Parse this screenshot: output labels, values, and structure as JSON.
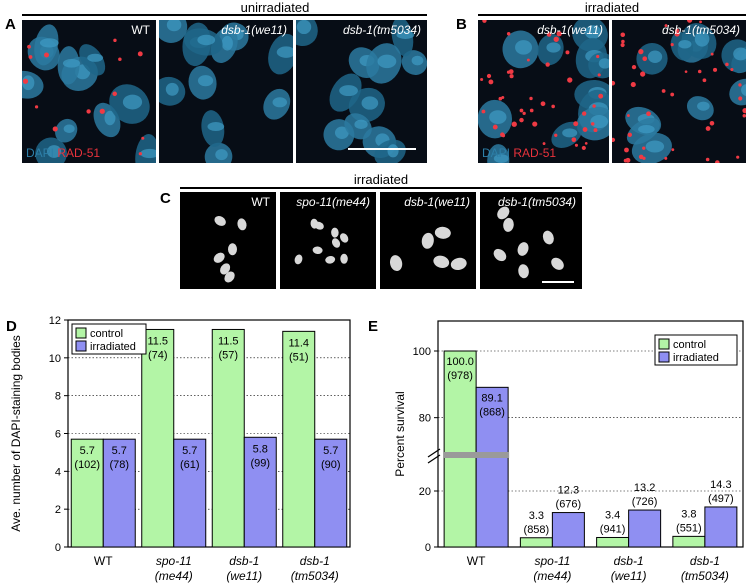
{
  "panels": {
    "a_label": "A",
    "b_label": "B",
    "c_label": "C",
    "d_label": "D",
    "e_label": "E"
  },
  "panel_a": {
    "group_title": "unirradiated",
    "images": [
      "WT",
      "dsb-1(we11)",
      "dsb-1(tm5034)"
    ],
    "stain_dapi": "DAPI",
    "stain_rad51": "RAD-51"
  },
  "panel_b": {
    "group_title": "irradiated",
    "images": [
      "dsb-1(we11)",
      "dsb-1(tm5034)"
    ],
    "stain_dapi": "DAPI",
    "stain_rad51": "RAD-51"
  },
  "panel_c": {
    "group_title": "irradiated",
    "images": [
      "WT",
      "spo-11(me44)",
      "dsb-1(we11)",
      "dsb-1(tm5034)"
    ]
  },
  "colors": {
    "control": "#b3f5a6",
    "irradiated": "#8f8ff2",
    "dapi": "#2d7fa8",
    "rad51": "#e8323c"
  },
  "chart_data": [
    {
      "type": "bar",
      "panel": "D",
      "ylabel": "Ave. number of DAPI-staining bodies",
      "ylim": [
        0,
        12
      ],
      "yticks": [
        "0",
        "2",
        "4",
        "6",
        "8",
        "10",
        "12"
      ],
      "grid": true,
      "legend_position": "top-left",
      "categories": [
        {
          "line1": "WT",
          "line2": ""
        },
        {
          "line1": "spo-11",
          "line2": "(me44)"
        },
        {
          "line1": "dsb-1",
          "line2": "(we11)"
        },
        {
          "line1": "dsb-1",
          "line2": "(tm5034)"
        }
      ],
      "series": [
        {
          "name": "control",
          "values": [
            5.7,
            11.5,
            11.5,
            11.4
          ],
          "value_labels": [
            "5.7",
            "11.5",
            "11.5",
            "11.4"
          ],
          "n_labels": [
            "(102)",
            "(74)",
            "(57)",
            "(51)"
          ]
        },
        {
          "name": "irradiated",
          "values": [
            5.7,
            5.7,
            5.8,
            5.7
          ],
          "value_labels": [
            "5.7",
            "5.7",
            "5.8",
            "5.7"
          ],
          "n_labels": [
            "(78)",
            "(61)",
            "(99)",
            "(90)"
          ]
        }
      ]
    },
    {
      "type": "bar",
      "panel": "E",
      "ylabel": "Percent survival",
      "ylim": [
        0,
        100
      ],
      "axis_break": true,
      "yticks": [
        "0",
        "20",
        "80",
        "100"
      ],
      "grid": true,
      "legend_position": "top-right",
      "categories": [
        {
          "line1": "WT",
          "line2": ""
        },
        {
          "line1": "spo-11",
          "line2": "(me44)"
        },
        {
          "line1": "dsb-1",
          "line2": "(we11)"
        },
        {
          "line1": "dsb-1",
          "line2": "(tm5034)"
        }
      ],
      "series": [
        {
          "name": "control",
          "values": [
            100.0,
            3.3,
            3.4,
            3.8
          ],
          "value_labels": [
            "100.0",
            "3.3",
            "3.4",
            "3.8"
          ],
          "n_labels": [
            "(978)",
            "(858)",
            "(941)",
            "(551)"
          ]
        },
        {
          "name": "irradiated",
          "values": [
            89.1,
            12.3,
            13.2,
            14.3
          ],
          "value_labels": [
            "89.1",
            "12.3",
            "13.2",
            "14.3"
          ],
          "n_labels": [
            "(868)",
            "(676)",
            "(726)",
            "(497)"
          ]
        }
      ]
    }
  ]
}
